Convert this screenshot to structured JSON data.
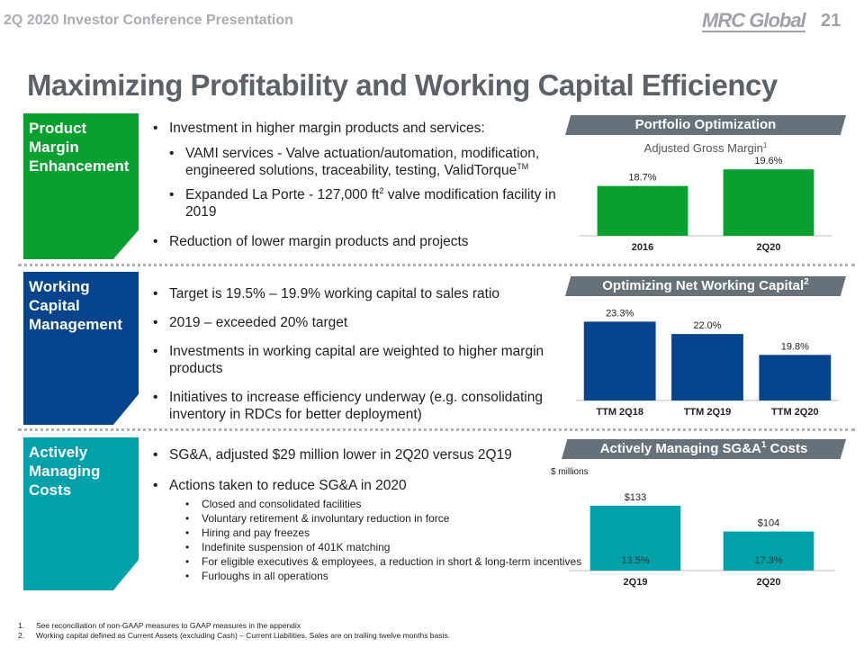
{
  "header": {
    "presentation_title": "2Q 2020 Investor Conference Presentation",
    "logo_text": "MRC Global",
    "page_number": "21"
  },
  "title": "Maximizing Profitability and Working Capital Efficiency",
  "sections": {
    "product_margin": {
      "label": "Product Margin Enhancement",
      "bullets": {
        "b1": "Investment in higher margin products and services:",
        "b1_sub1_main": "VAMI services - Valve actuation/automation, modification, engineered solutions, traceability, testing, ValidTorque",
        "b1_sub1_tm": "TM",
        "b1_sub2_pre": "Expanded La Porte - 127,000 ft",
        "b1_sub2_sup": "2",
        "b1_sub2_post": " valve modification facility in 2019",
        "b2": "Reduction of lower margin products and projects"
      }
    },
    "working_capital": {
      "label": "Working Capital Management",
      "bullets": [
        "Target is 19.5% – 19.9% working capital to sales ratio",
        "2019 – exceeded 20% target",
        "Investments in working capital are weighted to higher margin products",
        "Initiatives to increase efficiency underway (e.g. consolidating inventory in RDCs for better deployment)"
      ]
    },
    "costs": {
      "label": "Actively Managing Costs",
      "bullets": [
        "SG&A, adjusted $29 million lower in 2Q20 versus 2Q19",
        "Actions taken to reduce SG&A in 2020"
      ],
      "sub_bullets": [
        "Closed and consolidated facilities",
        "Voluntary retirement & involuntary reduction in force",
        "Hiring and pay freezes",
        "Indefinite suspension of 401K matching",
        "For eligible executives & employees, a reduction in short & long-term incentives",
        "Furloughs in all operations"
      ]
    }
  },
  "chart_data": [
    {
      "type": "bar",
      "banner": "Portfolio Optimization",
      "title": "Adjusted Gross Margin",
      "title_sup": "1",
      "categories": [
        "2016",
        "2Q20"
      ],
      "values": [
        18.7,
        19.6
      ],
      "value_labels": [
        "18.7%",
        "19.6%"
      ],
      "ylim": [
        16,
        20
      ],
      "color": "#08a12f"
    },
    {
      "type": "bar",
      "banner": "Optimizing Net Working Capital",
      "banner_sup": "2",
      "categories": [
        "TTM 2Q18",
        "TTM 2Q19",
        "TTM  2Q20"
      ],
      "values": [
        23.3,
        22.0,
        19.8
      ],
      "value_labels": [
        "23.3%",
        "22.0%",
        "19.8%"
      ],
      "ylim": [
        15,
        24
      ],
      "color": "#06458d"
    },
    {
      "type": "bar",
      "banner": "Actively Managing SG&A",
      "banner_sup": "1",
      "banner_suffix": " Costs",
      "ylabel": "$ millions",
      "categories": [
        "2Q19",
        "2Q20"
      ],
      "values": [
        133,
        104
      ],
      "value_labels": [
        "$133",
        "$104"
      ],
      "inner_labels": [
        "13.5%",
        "17.3%"
      ],
      "ylim": [
        60,
        140
      ],
      "color": "#00a1a9"
    }
  ],
  "footnotes": [
    {
      "num": "1.",
      "text": "See reconciliation of non-GAAP measures to GAAP measures in the appendix"
    },
    {
      "num": "2.",
      "text": "Working capital defined as Current Assets (excluding Cash) – Current Liabilities. Sales are on trailing twelve months basis."
    }
  ]
}
